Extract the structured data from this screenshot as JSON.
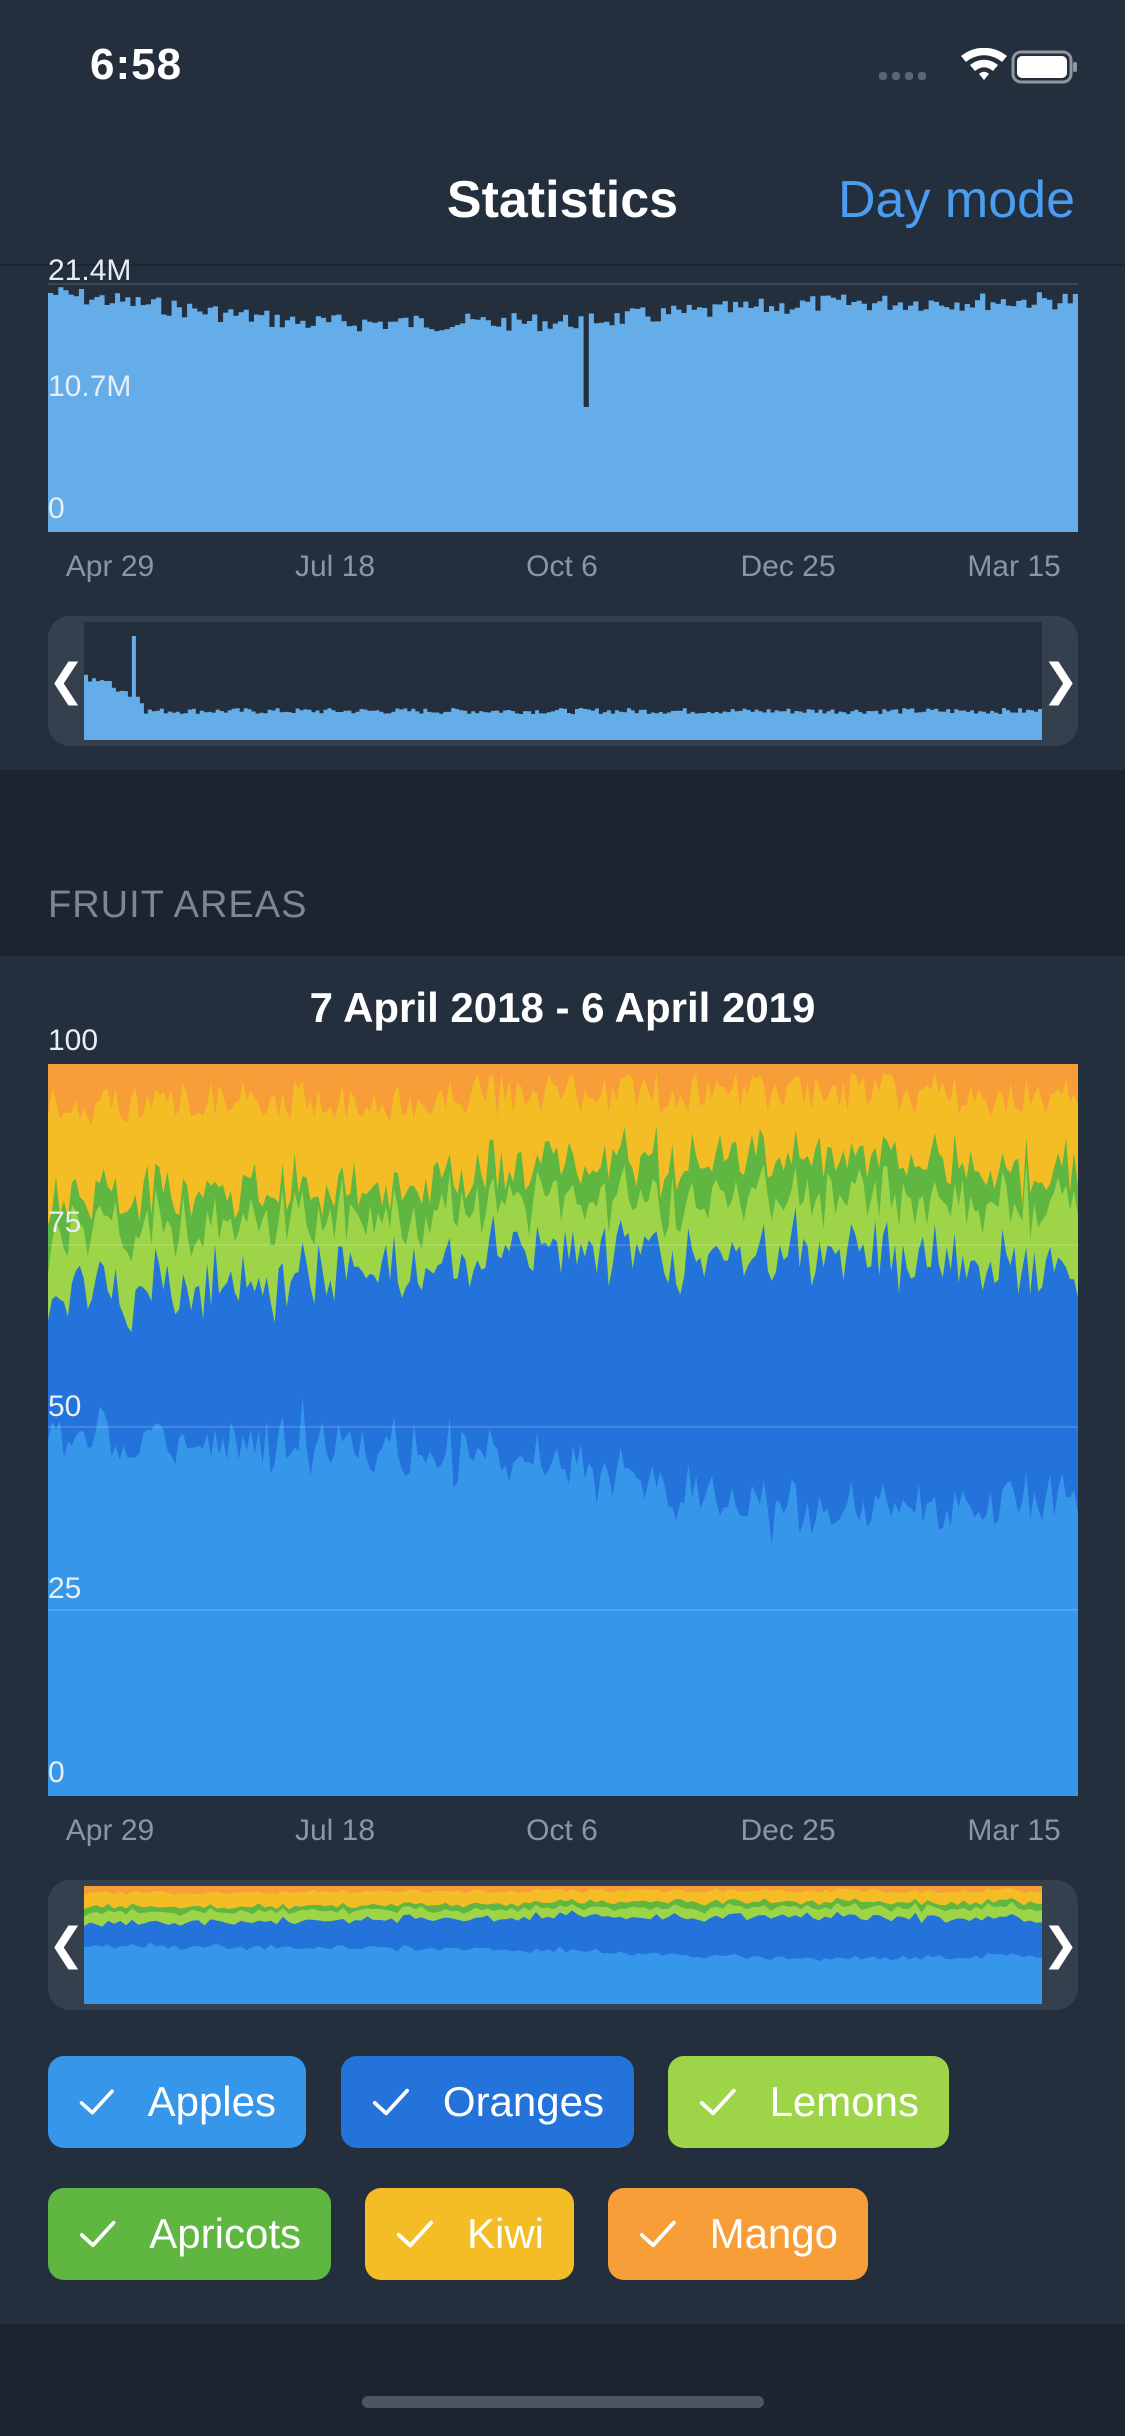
{
  "status": {
    "time": "6:58"
  },
  "nav": {
    "title": "Statistics",
    "action": "Day mode"
  },
  "chart1": {
    "y_labels": [
      "21.4M",
      "10.7M",
      "0"
    ],
    "x_labels": [
      "Apr 29",
      "Jul 18",
      "Oct 6",
      "Dec 25",
      "Mar 15"
    ]
  },
  "section": {
    "title": "FRUIT AREAS"
  },
  "chart2": {
    "range_title": "7 April 2018 - 6 April 2019",
    "y_labels": [
      "100",
      "75",
      "50",
      "25",
      "0"
    ],
    "x_labels": [
      "Apr 29",
      "Jul 18",
      "Oct 6",
      "Dec 25",
      "Mar 15"
    ]
  },
  "legend": [
    {
      "label": "Apples",
      "color": "#3596ea"
    },
    {
      "label": "Oranges",
      "color": "#2373db"
    },
    {
      "label": "Lemons",
      "color": "#9ed448"
    },
    {
      "label": "Apricots",
      "color": "#5fb641"
    },
    {
      "label": "Kiwi",
      "color": "#f5bd25"
    },
    {
      "label": "Mango",
      "color": "#f79e39"
    }
  ],
  "chart_data": [
    {
      "type": "bar",
      "title": "",
      "x": [
        "Apr 29",
        "Jul 18",
        "Oct 6",
        "Dec 25",
        "Mar 15"
      ],
      "series": [
        {
          "values": [
            21.4,
            18.8,
            18.9,
            20.5,
            20.8
          ]
        }
      ],
      "xlabel": "",
      "ylabel": "",
      "ylim": [
        0,
        21.4
      ],
      "y_unit": "M",
      "yticks": [
        "0",
        "10.7M",
        "21.4M"
      ],
      "grid": true,
      "color": "#64ade9"
    },
    {
      "type": "area",
      "title": "7 April 2018 - 6 April 2019",
      "stacked_percent": true,
      "x": [
        "Apr 29",
        "Jul 18",
        "Oct 6",
        "Dec 25",
        "Mar 15"
      ],
      "series": [
        {
          "name": "Apples",
          "color": "#3596ea",
          "values": [
            49,
            48,
            45,
            38,
            41
          ]
        },
        {
          "name": "Oranges",
          "color": "#2373db",
          "values": [
            19,
            23,
            29,
            36,
            31
          ]
        },
        {
          "name": "Lemons",
          "color": "#9ed448",
          "values": [
            9,
            8,
            7,
            8,
            9
          ]
        },
        {
          "name": "Apricots",
          "color": "#5fb641",
          "values": [
            5,
            4,
            5,
            5,
            5
          ]
        },
        {
          "name": "Kiwi",
          "color": "#f5bd25",
          "values": [
            12,
            12,
            10,
            9,
            10
          ]
        },
        {
          "name": "Mango",
          "color": "#f79e39",
          "values": [
            6,
            5,
            4,
            4,
            4
          ]
        }
      ],
      "ylim": [
        0,
        100
      ],
      "yticks": [
        0,
        25,
        50,
        75,
        100
      ],
      "grid": true
    }
  ]
}
